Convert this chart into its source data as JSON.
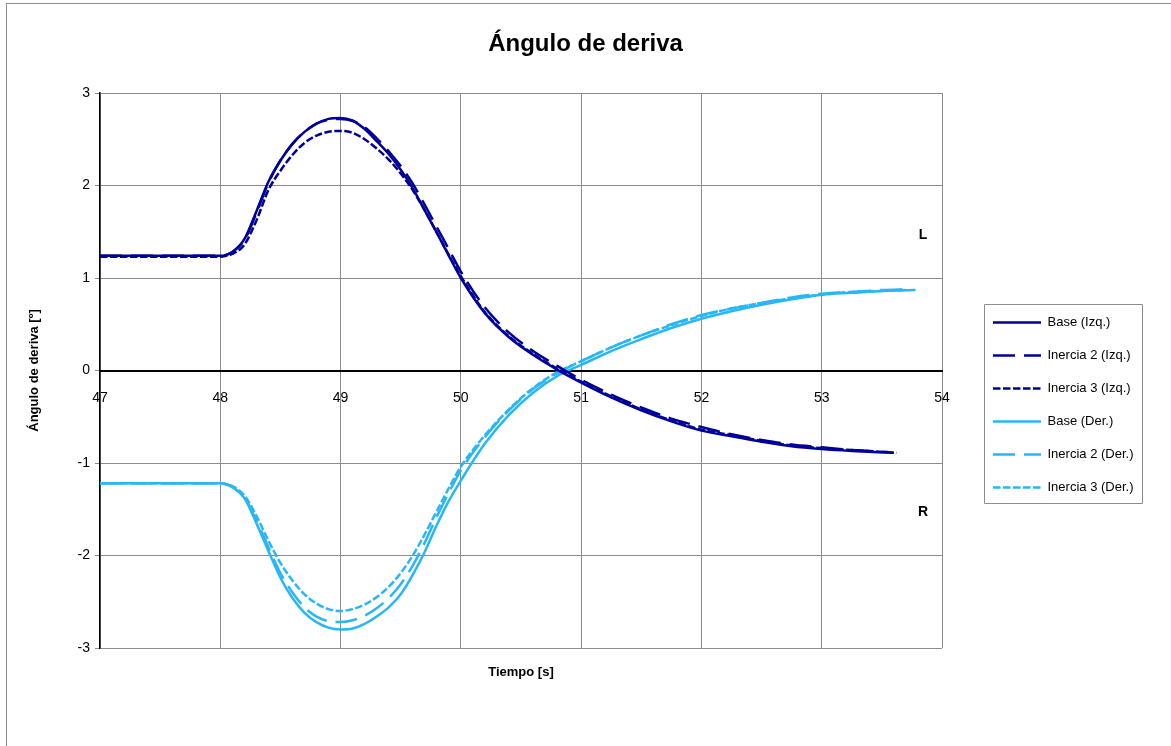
{
  "chart_data": {
    "type": "line",
    "title": "Ángulo de deriva",
    "xlabel": "Tiempo [s]",
    "ylabel": "Ángulo de deriva [º]",
    "xlim": [
      47,
      54
    ],
    "xticks": [
      47,
      48,
      49,
      50,
      51,
      52,
      53,
      54
    ],
    "ylim": [
      -3,
      3
    ],
    "yticks": [
      -3,
      -2,
      -1,
      0,
      1,
      2,
      3
    ],
    "grid": true,
    "legend": "right",
    "marker": "none",
    "annotations": [
      "L",
      "R"
    ],
    "series": [
      {
        "name": "Base (Izq.)",
        "color": "#000099",
        "line_style": "solid",
        "x": [
          47,
          48,
          48.05,
          48.1,
          48.2,
          48.3,
          48.4,
          48.5,
          48.6,
          48.7,
          48.8,
          48.9,
          49,
          49.1,
          49.2,
          49.3,
          49.4,
          49.5,
          49.6,
          49.7,
          49.8,
          49.9,
          50,
          50.2,
          50.4,
          50.6,
          50.8,
          51,
          51.25,
          51.5,
          51.75,
          52,
          52.25,
          52.5,
          52.75,
          53,
          53.25,
          53.6
        ],
        "values": [
          1.24,
          1.24,
          1.25,
          1.28,
          1.42,
          1.72,
          2.04,
          2.27,
          2.45,
          2.58,
          2.67,
          2.72,
          2.73,
          2.7,
          2.61,
          2.48,
          2.34,
          2.17,
          1.97,
          1.73,
          1.49,
          1.24,
          1.0,
          0.62,
          0.36,
          0.17,
          0.01,
          -0.13,
          -0.29,
          -0.43,
          -0.55,
          -0.65,
          -0.71,
          -0.77,
          -0.82,
          -0.85,
          -0.87,
          -0.89
        ]
      },
      {
        "name": "Inercia 2 (Izq.)",
        "color": "#000099",
        "line_style": "dashed",
        "x": [
          47,
          48,
          48.05,
          48.1,
          48.2,
          48.3,
          48.4,
          48.5,
          48.6,
          48.7,
          48.8,
          48.9,
          49,
          49.1,
          49.2,
          49.3,
          49.4,
          49.5,
          49.6,
          49.7,
          49.8,
          49.9,
          50,
          50.2,
          50.4,
          50.6,
          50.8,
          51,
          51.25,
          51.5,
          51.75,
          52,
          52.25,
          52.5,
          52.75,
          53,
          53.25,
          53.55
        ],
        "values": [
          1.24,
          1.24,
          1.25,
          1.28,
          1.41,
          1.7,
          2.03,
          2.27,
          2.45,
          2.58,
          2.67,
          2.71,
          2.72,
          2.7,
          2.63,
          2.51,
          2.37,
          2.21,
          2.02,
          1.79,
          1.55,
          1.31,
          1.07,
          0.68,
          0.41,
          0.21,
          0.05,
          -0.1,
          -0.26,
          -0.4,
          -0.52,
          -0.61,
          -0.69,
          -0.75,
          -0.8,
          -0.83,
          -0.86,
          -0.88
        ]
      },
      {
        "name": "Inercia 3 (Izq.)",
        "color": "#000099",
        "line_style": "dotted",
        "x": [
          47,
          48,
          48.05,
          48.1,
          48.2,
          48.3,
          48.4,
          48.5,
          48.6,
          48.7,
          48.8,
          48.9,
          49,
          49.1,
          49.2,
          49.3,
          49.4,
          49.5,
          49.6,
          49.7,
          49.8,
          49.9,
          50,
          50.2,
          50.4,
          50.6,
          50.8,
          51,
          51.25,
          51.5,
          51.75,
          52,
          52.25,
          52.5,
          52.75,
          53,
          53.25,
          53.62
        ],
        "values": [
          1.23,
          1.23,
          1.24,
          1.26,
          1.36,
          1.62,
          1.95,
          2.16,
          2.33,
          2.46,
          2.54,
          2.58,
          2.59,
          2.57,
          2.5,
          2.4,
          2.28,
          2.13,
          1.95,
          1.73,
          1.49,
          1.25,
          1.02,
          0.63,
          0.37,
          0.18,
          0.02,
          -0.12,
          -0.28,
          -0.42,
          -0.54,
          -0.64,
          -0.7,
          -0.76,
          -0.81,
          -0.84,
          -0.86,
          -0.89
        ]
      },
      {
        "name": "Base (Der.)",
        "color": "#29b6f6",
        "line_style": "solid",
        "x": [
          47,
          48,
          48.05,
          48.1,
          48.2,
          48.3,
          48.4,
          48.5,
          48.6,
          48.7,
          48.8,
          48.9,
          49,
          49.1,
          49.2,
          49.3,
          49.4,
          49.5,
          49.6,
          49.7,
          49.8,
          49.9,
          50,
          50.2,
          50.4,
          50.6,
          50.8,
          51,
          51.25,
          51.5,
          51.75,
          52,
          52.25,
          52.5,
          52.75,
          53,
          53.25,
          53.5,
          53.78
        ],
        "values": [
          -1.22,
          -1.22,
          -1.23,
          -1.26,
          -1.38,
          -1.65,
          -1.95,
          -2.24,
          -2.46,
          -2.62,
          -2.72,
          -2.78,
          -2.8,
          -2.79,
          -2.74,
          -2.66,
          -2.56,
          -2.42,
          -2.21,
          -1.96,
          -1.67,
          -1.41,
          -1.19,
          -0.79,
          -0.48,
          -0.24,
          -0.06,
          0.06,
          0.21,
          0.34,
          0.46,
          0.56,
          0.64,
          0.71,
          0.77,
          0.82,
          0.84,
          0.86,
          0.87
        ]
      },
      {
        "name": "Inercia 2 (Der.)",
        "color": "#29b6f6",
        "line_style": "dashed",
        "x": [
          47,
          48,
          48.05,
          48.1,
          48.2,
          48.3,
          48.4,
          48.5,
          48.6,
          48.7,
          48.8,
          48.9,
          49,
          49.1,
          49.2,
          49.3,
          49.4,
          49.5,
          49.6,
          49.7,
          49.8,
          49.9,
          50,
          50.2,
          50.4,
          50.6,
          50.8,
          51,
          51.25,
          51.5,
          51.75,
          52,
          52.25,
          52.5,
          52.75,
          53,
          53.25,
          53.5,
          53.72
        ],
        "values": [
          -1.22,
          -1.22,
          -1.23,
          -1.26,
          -1.37,
          -1.62,
          -1.91,
          -2.19,
          -2.4,
          -2.56,
          -2.66,
          -2.71,
          -2.72,
          -2.7,
          -2.65,
          -2.57,
          -2.46,
          -2.31,
          -2.11,
          -1.86,
          -1.58,
          -1.32,
          -1.08,
          -0.72,
          -0.43,
          -0.2,
          -0.03,
          0.1,
          0.25,
          0.38,
          0.5,
          0.6,
          0.67,
          0.73,
          0.79,
          0.83,
          0.85,
          0.87,
          0.88
        ]
      },
      {
        "name": "Inercia 3 (Der.)",
        "color": "#29b6f6",
        "line_style": "dotted",
        "x": [
          47,
          48,
          48.05,
          48.1,
          48.2,
          48.3,
          48.4,
          48.5,
          48.6,
          48.7,
          48.8,
          48.9,
          49,
          49.1,
          49.2,
          49.3,
          49.4,
          49.5,
          49.6,
          49.7,
          49.8,
          49.9,
          50,
          50.2,
          50.4,
          50.6,
          50.8,
          51,
          51.25,
          51.5,
          51.75,
          52,
          52.25,
          52.5,
          52.75,
          53,
          53.25,
          53.5,
          53.7
        ],
        "values": [
          -1.22,
          -1.22,
          -1.23,
          -1.25,
          -1.35,
          -1.57,
          -1.84,
          -2.08,
          -2.27,
          -2.42,
          -2.52,
          -2.58,
          -2.6,
          -2.58,
          -2.53,
          -2.45,
          -2.34,
          -2.19,
          -2.0,
          -1.77,
          -1.52,
          -1.27,
          -1.04,
          -0.7,
          -0.42,
          -0.19,
          -0.02,
          0.1,
          0.25,
          0.38,
          0.49,
          0.59,
          0.67,
          0.73,
          0.78,
          0.82,
          0.85,
          0.86,
          0.87
        ]
      }
    ]
  }
}
